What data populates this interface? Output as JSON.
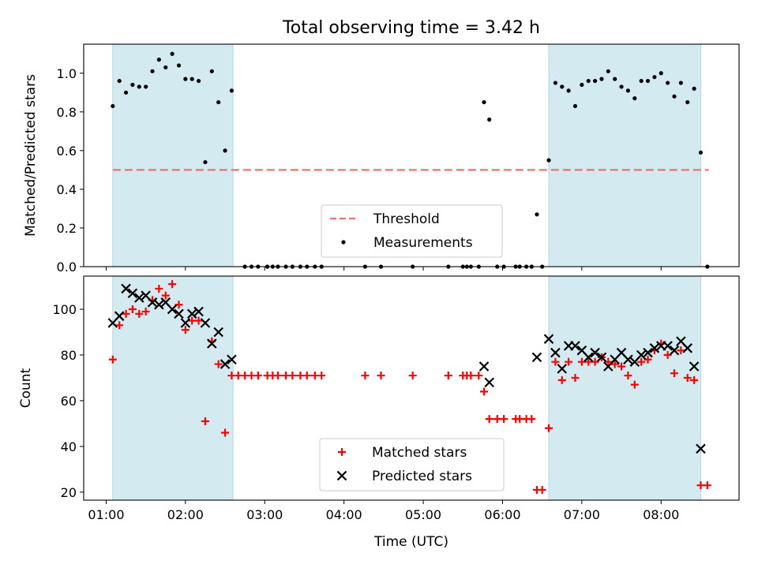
{
  "figure": {
    "title": "Total observing time = 3.42 h",
    "xlabel": "Time (UTC)"
  },
  "chart_data": [
    {
      "type": "scatter",
      "title": "Total observing time = 3.42 h",
      "ylabel": "Matched/Predicted stars",
      "ylim": [
        0,
        1.15
      ],
      "xlim": [
        "00:43",
        "08:59"
      ],
      "yticks": [
        "0.0",
        "0.2",
        "0.4",
        "0.6",
        "0.8",
        "1.0"
      ],
      "highlight_windows": [
        [
          "01:05",
          "02:36"
        ],
        [
          "06:35",
          "08:30"
        ]
      ],
      "highlight_color": "#d4eaf1",
      "threshold": {
        "name": "Threshold",
        "y": 0.5,
        "x_range": [
          "01:05",
          "08:36"
        ],
        "color": "#f07070",
        "style": "dashed"
      },
      "series": [
        {
          "name": "Measurements",
          "marker": "dot",
          "color": "#000000",
          "points": [
            [
              "01:05",
              0.83
            ],
            [
              "01:10",
              0.96
            ],
            [
              "01:15",
              0.9
            ],
            [
              "01:20",
              0.94
            ],
            [
              "01:25",
              0.93
            ],
            [
              "01:30",
              0.93
            ],
            [
              "01:35",
              1.01
            ],
            [
              "01:40",
              1.07
            ],
            [
              "01:45",
              1.03
            ],
            [
              "01:50",
              1.1
            ],
            [
              "01:55",
              1.04
            ],
            [
              "02:00",
              0.97
            ],
            [
              "02:05",
              0.97
            ],
            [
              "02:10",
              0.96
            ],
            [
              "02:15",
              0.54
            ],
            [
              "02:20",
              1.01
            ],
            [
              "02:25",
              0.85
            ],
            [
              "02:30",
              0.6
            ],
            [
              "02:35",
              0.91
            ],
            [
              "02:45",
              0.0
            ],
            [
              "02:50",
              0.0
            ],
            [
              "02:55",
              0.0
            ],
            [
              "03:02",
              0.0
            ],
            [
              "03:06",
              0.0
            ],
            [
              "03:10",
              0.0
            ],
            [
              "03:16",
              0.0
            ],
            [
              "03:21",
              0.0
            ],
            [
              "03:27",
              0.0
            ],
            [
              "03:32",
              0.0
            ],
            [
              "03:38",
              0.0
            ],
            [
              "03:43",
              0.0
            ],
            [
              "04:16",
              0.0
            ],
            [
              "04:28",
              0.0
            ],
            [
              "04:52",
              0.0
            ],
            [
              "05:19",
              0.0
            ],
            [
              "05:30",
              0.0
            ],
            [
              "05:33",
              0.0
            ],
            [
              "05:36",
              0.0
            ],
            [
              "05:42",
              0.0
            ],
            [
              "05:46",
              0.85
            ],
            [
              "05:50",
              0.76
            ],
            [
              "05:56",
              0.0
            ],
            [
              "06:01",
              0.0
            ],
            [
              "06:10",
              0.0
            ],
            [
              "06:13",
              0.0
            ],
            [
              "06:18",
              0.0
            ],
            [
              "06:22",
              0.0
            ],
            [
              "06:26",
              0.27
            ],
            [
              "06:30",
              0.0
            ],
            [
              "06:35",
              0.55
            ],
            [
              "06:40",
              0.95
            ],
            [
              "06:45",
              0.93
            ],
            [
              "06:50",
              0.91
            ],
            [
              "06:55",
              0.83
            ],
            [
              "07:00",
              0.94
            ],
            [
              "07:05",
              0.96
            ],
            [
              "07:10",
              0.96
            ],
            [
              "07:15",
              0.97
            ],
            [
              "07:20",
              1.01
            ],
            [
              "07:25",
              0.97
            ],
            [
              "07:30",
              0.93
            ],
            [
              "07:35",
              0.91
            ],
            [
              "07:40",
              0.87
            ],
            [
              "07:45",
              0.96
            ],
            [
              "07:50",
              0.96
            ],
            [
              "07:55",
              0.98
            ],
            [
              "08:00",
              1.0
            ],
            [
              "08:05",
              0.95
            ],
            [
              "08:10",
              0.88
            ],
            [
              "08:15",
              0.95
            ],
            [
              "08:20",
              0.85
            ],
            [
              "08:25",
              0.92
            ],
            [
              "08:30",
              0.59
            ],
            [
              "08:35",
              0.0
            ]
          ]
        }
      ],
      "legend": {
        "position": "lower center",
        "entries": [
          "Threshold",
          "Measurements"
        ]
      }
    },
    {
      "type": "scatter",
      "ylabel": "Count",
      "xlabel": "Time (UTC)",
      "ylim": [
        16.5,
        114.5
      ],
      "xlim": [
        "00:43",
        "08:59"
      ],
      "yticks": [
        "20",
        "40",
        "60",
        "80",
        "100"
      ],
      "xticks": [
        "01:00",
        "02:00",
        "03:00",
        "04:00",
        "05:00",
        "06:00",
        "07:00",
        "08:00"
      ],
      "highlight_windows": [
        [
          "01:05",
          "02:36"
        ],
        [
          "06:35",
          "08:30"
        ]
      ],
      "highlight_color": "#d4eaf1",
      "series": [
        {
          "name": "Matched stars",
          "marker": "plus",
          "color": "#ff0000",
          "points": [
            [
              "01:05",
              78
            ],
            [
              "01:10",
              93
            ],
            [
              "01:15",
              98
            ],
            [
              "01:20",
              100
            ],
            [
              "01:25",
              98
            ],
            [
              "01:30",
              99
            ],
            [
              "01:35",
              104
            ],
            [
              "01:40",
              109
            ],
            [
              "01:45",
              106
            ],
            [
              "01:50",
              111
            ],
            [
              "01:55",
              102
            ],
            [
              "02:00",
              91
            ],
            [
              "02:05",
              95
            ],
            [
              "02:10",
              95
            ],
            [
              "02:15",
              51
            ],
            [
              "02:20",
              86
            ],
            [
              "02:25",
              76
            ],
            [
              "02:30",
              46
            ],
            [
              "02:35",
              71
            ],
            [
              "02:40",
              71
            ],
            [
              "02:45",
              71
            ],
            [
              "02:50",
              71
            ],
            [
              "02:55",
              71
            ],
            [
              "03:02",
              71
            ],
            [
              "03:06",
              71
            ],
            [
              "03:10",
              71
            ],
            [
              "03:16",
              71
            ],
            [
              "03:21",
              71
            ],
            [
              "03:27",
              71
            ],
            [
              "03:32",
              71
            ],
            [
              "03:38",
              71
            ],
            [
              "03:43",
              71
            ],
            [
              "04:16",
              71
            ],
            [
              "04:28",
              71
            ],
            [
              "04:52",
              71
            ],
            [
              "05:19",
              71
            ],
            [
              "05:30",
              71
            ],
            [
              "05:33",
              71
            ],
            [
              "05:36",
              71
            ],
            [
              "05:42",
              71
            ],
            [
              "05:46",
              64
            ],
            [
              "05:50",
              52
            ],
            [
              "05:56",
              52
            ],
            [
              "06:01",
              52
            ],
            [
              "06:10",
              52
            ],
            [
              "06:13",
              52
            ],
            [
              "06:18",
              52
            ],
            [
              "06:22",
              52
            ],
            [
              "06:26",
              21
            ],
            [
              "06:30",
              21
            ],
            [
              "06:35",
              48
            ],
            [
              "06:40",
              77
            ],
            [
              "06:45",
              69
            ],
            [
              "06:50",
              77
            ],
            [
              "06:55",
              70
            ],
            [
              "07:00",
              77
            ],
            [
              "07:05",
              77
            ],
            [
              "07:10",
              77
            ],
            [
              "07:15",
              79
            ],
            [
              "07:20",
              77
            ],
            [
              "07:25",
              76
            ],
            [
              "07:30",
              75
            ],
            [
              "07:35",
              71
            ],
            [
              "07:40",
              67
            ],
            [
              "07:45",
              77
            ],
            [
              "07:50",
              78
            ],
            [
              "07:55",
              82
            ],
            [
              "08:00",
              85
            ],
            [
              "08:05",
              80
            ],
            [
              "08:10",
              72
            ],
            [
              "08:15",
              82
            ],
            [
              "08:20",
              70
            ],
            [
              "08:25",
              69
            ],
            [
              "08:30",
              23
            ],
            [
              "08:35",
              23
            ]
          ]
        },
        {
          "name": "Predicted stars",
          "marker": "x",
          "color": "#000000",
          "points": [
            [
              "01:05",
              94
            ],
            [
              "01:10",
              97
            ],
            [
              "01:15",
              109
            ],
            [
              "01:20",
              107
            ],
            [
              "01:25",
              105
            ],
            [
              "01:30",
              106
            ],
            [
              "01:35",
              103
            ],
            [
              "01:40",
              102
            ],
            [
              "01:45",
              103
            ],
            [
              "01:50",
              100
            ],
            [
              "01:55",
              98
            ],
            [
              "02:00",
              94
            ],
            [
              "02:05",
              98
            ],
            [
              "02:10",
              99
            ],
            [
              "02:15",
              94
            ],
            [
              "02:20",
              85
            ],
            [
              "02:25",
              90
            ],
            [
              "02:30",
              76
            ],
            [
              "02:35",
              78
            ],
            [
              "05:46",
              75
            ],
            [
              "05:50",
              68
            ],
            [
              "06:26",
              79
            ],
            [
              "06:35",
              87
            ],
            [
              "06:40",
              81
            ],
            [
              "06:45",
              74
            ],
            [
              "06:50",
              84
            ],
            [
              "06:55",
              84
            ],
            [
              "07:00",
              82
            ],
            [
              "07:05",
              79
            ],
            [
              "07:10",
              81
            ],
            [
              "07:15",
              79
            ],
            [
              "07:20",
              75
            ],
            [
              "07:25",
              78
            ],
            [
              "07:30",
              81
            ],
            [
              "07:35",
              78
            ],
            [
              "07:40",
              77
            ],
            [
              "07:45",
              80
            ],
            [
              "07:50",
              81
            ],
            [
              "07:55",
              83
            ],
            [
              "08:00",
              84
            ],
            [
              "08:05",
              84
            ],
            [
              "08:10",
              82
            ],
            [
              "08:15",
              86
            ],
            [
              "08:20",
              83
            ],
            [
              "08:25",
              75
            ],
            [
              "08:30",
              39
            ]
          ]
        }
      ],
      "legend": {
        "position": "lower center",
        "entries": [
          "Matched stars",
          "Predicted stars"
        ]
      }
    }
  ]
}
